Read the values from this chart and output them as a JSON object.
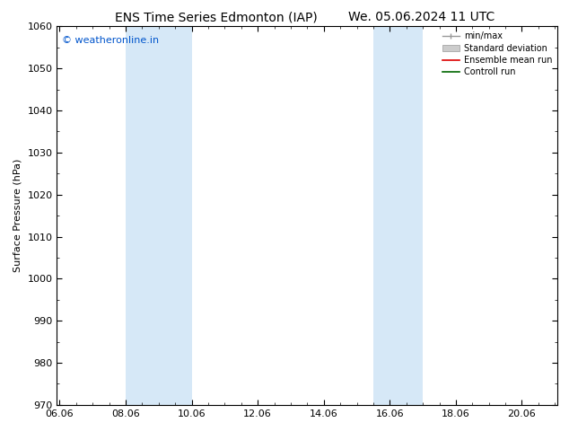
{
  "title_left": "ENS Time Series Edmonton (IAP)",
  "title_right": "We. 05.06.2024 11 UTC",
  "ylabel": "Surface Pressure (hPa)",
  "ylim": [
    970,
    1060
  ],
  "yticks": [
    970,
    980,
    990,
    1000,
    1010,
    1020,
    1030,
    1040,
    1050,
    1060
  ],
  "xlim_start": 5.917,
  "xlim_end": 21.083,
  "xtick_labels": [
    "06.06",
    "08.06",
    "10.06",
    "12.06",
    "14.06",
    "16.06",
    "18.06",
    "20.06"
  ],
  "xtick_positions": [
    6.0,
    8.0,
    10.0,
    12.0,
    14.0,
    16.0,
    18.0,
    20.0
  ],
  "shaded_bands": [
    {
      "x_start": 8.0,
      "x_end": 10.0,
      "color": "#d6e8f7"
    },
    {
      "x_start": 15.5,
      "x_end": 17.0,
      "color": "#d6e8f7"
    }
  ],
  "watermark_text": "© weatheronline.in",
  "watermark_color": "#0055cc",
  "watermark_fontsize": 8,
  "background_color": "#ffffff",
  "title_fontsize": 10,
  "axis_label_fontsize": 8,
  "tick_fontsize": 8,
  "legend_fontsize": 7,
  "legend_right_align": true
}
